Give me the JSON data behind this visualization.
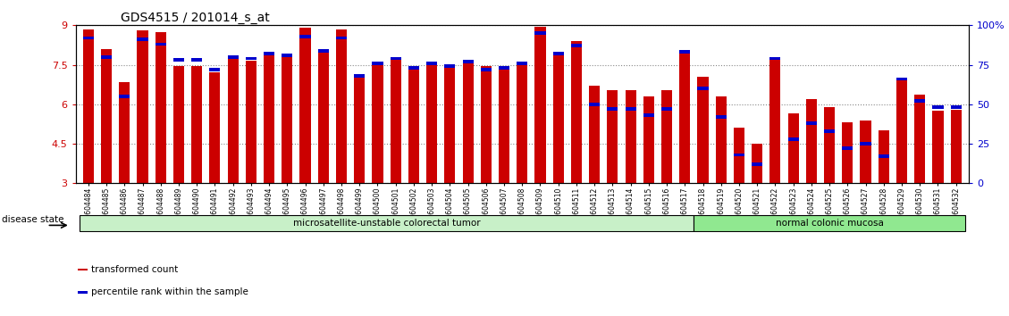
{
  "title": "GDS4515 / 201014_s_at",
  "samples": [
    "GSM604484",
    "GSM604485",
    "GSM604486",
    "GSM604487",
    "GSM604488",
    "GSM604489",
    "GSM604490",
    "GSM604491",
    "GSM604492",
    "GSM604493",
    "GSM604494",
    "GSM604495",
    "GSM604496",
    "GSM604497",
    "GSM604498",
    "GSM604499",
    "GSM604500",
    "GSM604501",
    "GSM604502",
    "GSM604503",
    "GSM604504",
    "GSM604505",
    "GSM604506",
    "GSM604507",
    "GSM604508",
    "GSM604509",
    "GSM604510",
    "GSM604511",
    "GSM604512",
    "GSM604513",
    "GSM604514",
    "GSM604515",
    "GSM604516",
    "GSM604517",
    "GSM604518",
    "GSM604519",
    "GSM604520",
    "GSM604521",
    "GSM604522",
    "GSM604523",
    "GSM604524",
    "GSM604525",
    "GSM604526",
    "GSM604527",
    "GSM604528",
    "GSM604529",
    "GSM604530",
    "GSM604531",
    "GSM604532"
  ],
  "transformed_count": [
    8.85,
    8.1,
    6.85,
    8.82,
    8.75,
    7.45,
    7.45,
    7.2,
    7.75,
    7.65,
    7.85,
    7.8,
    8.9,
    8.1,
    8.85,
    7.1,
    7.55,
    7.7,
    7.4,
    7.55,
    7.45,
    7.6,
    7.45,
    7.45,
    7.55,
    8.95,
    8.0,
    8.4,
    6.7,
    6.55,
    6.55,
    6.3,
    6.55,
    7.95,
    7.05,
    6.3,
    5.1,
    4.5,
    7.75,
    5.65,
    6.2,
    5.9,
    5.3,
    5.4,
    5.0,
    6.95,
    6.35,
    5.75,
    5.8
  ],
  "percentile_rank": [
    92,
    80,
    55,
    91,
    88,
    78,
    78,
    72,
    80,
    79,
    82,
    81,
    93,
    84,
    92,
    68,
    76,
    79,
    73,
    76,
    74,
    77,
    72,
    73,
    76,
    95,
    82,
    87,
    50,
    47,
    47,
    43,
    47,
    83,
    60,
    42,
    18,
    12,
    79,
    28,
    38,
    33,
    22,
    25,
    17,
    66,
    52,
    48,
    48
  ],
  "disease_groups": [
    {
      "label": "microsatellite-unstable colorectal tumor",
      "start": 0,
      "end": 34,
      "color": "#c8f0c8"
    },
    {
      "label": "normal colonic mucosa",
      "start": 34,
      "end": 49,
      "color": "#90e890"
    }
  ],
  "ylim_left": [
    3,
    9
  ],
  "ylim_right": [
    0,
    100
  ],
  "yticks_left": [
    3,
    4.5,
    6,
    7.5,
    9
  ],
  "yticks_right": [
    0,
    25,
    50,
    75,
    100
  ],
  "yticklabels_right": [
    "0",
    "25",
    "50",
    "75",
    "100%"
  ],
  "bar_color": "#cc0000",
  "percentile_color": "#0000cc",
  "grid_color": "#888888",
  "background_color": "#ffffff",
  "tick_label_color_left": "#cc0000",
  "tick_label_color_right": "#0000cc",
  "legend_items": [
    {
      "label": "transformed count",
      "color": "#cc0000"
    },
    {
      "label": "percentile rank within the sample",
      "color": "#0000cc"
    }
  ],
  "disease_state_label": "disease state"
}
